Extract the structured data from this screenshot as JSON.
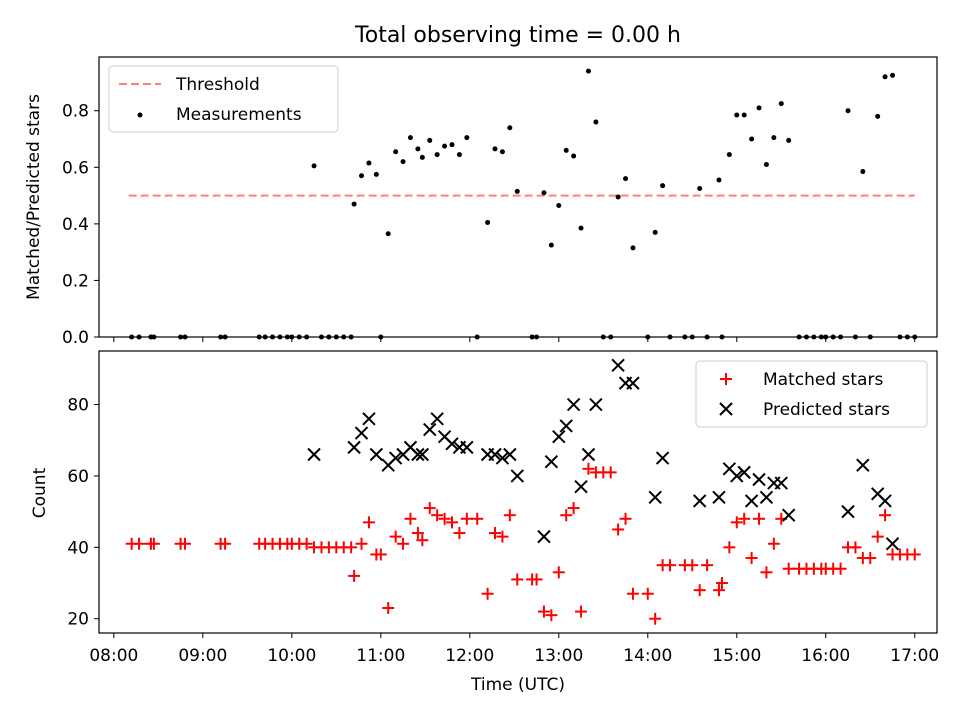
{
  "chart_data": [
    {
      "type": "scatter",
      "title": "Total observing time = 0.00 h",
      "xlabel": "",
      "ylabel": "Matched/Predicted stars",
      "xlim": [
        "07:50",
        "17:15"
      ],
      "ylim": [
        0,
        0.99
      ],
      "yticks": [
        "0.0",
        "0.2",
        "0.4",
        "0.6",
        "0.8"
      ],
      "legend_position": "upper left",
      "legend": [
        "Threshold",
        "Measurements"
      ],
      "threshold": {
        "name": "Threshold",
        "value": 0.5,
        "x": [
          "08:10",
          "17:00"
        ],
        "color": "#ff7f7f"
      },
      "series": [
        {
          "name": "Measurements",
          "color": "#000000",
          "marker": "dot",
          "points": [
            [
              "08:12",
              0
            ],
            [
              "08:17",
              0
            ],
            [
              "08:25",
              0
            ],
            [
              "08:27",
              0
            ],
            [
              "08:45",
              0
            ],
            [
              "08:48",
              0
            ],
            [
              "09:12",
              0
            ],
            [
              "09:15",
              0
            ],
            [
              "09:38",
              0
            ],
            [
              "09:42",
              0
            ],
            [
              "09:47",
              0
            ],
            [
              "09:52",
              0
            ],
            [
              "09:57",
              0
            ],
            [
              "10:00",
              0
            ],
            [
              "10:05",
              0
            ],
            [
              "10:10",
              0
            ],
            [
              "10:15",
              0.605
            ],
            [
              "10:20",
              0
            ],
            [
              "10:25",
              0
            ],
            [
              "10:30",
              0
            ],
            [
              "10:35",
              0
            ],
            [
              "10:40",
              0
            ],
            [
              "10:42",
              0.47
            ],
            [
              "10:47",
              0.57
            ],
            [
              "10:52",
              0.615
            ],
            [
              "10:57",
              0.575
            ],
            [
              "11:00",
              0
            ],
            [
              "11:05",
              0.365
            ],
            [
              "11:10",
              0.655
            ],
            [
              "11:15",
              0.62
            ],
            [
              "11:20",
              0.705
            ],
            [
              "11:25",
              0.665
            ],
            [
              "11:28",
              0.635
            ],
            [
              "11:33",
              0.695
            ],
            [
              "11:38",
              0.645
            ],
            [
              "11:43",
              0.675
            ],
            [
              "11:48",
              0.68
            ],
            [
              "11:53",
              0.645
            ],
            [
              "11:58",
              0.705
            ],
            [
              "12:05",
              0
            ],
            [
              "12:12",
              0.405
            ],
            [
              "12:17",
              0.665
            ],
            [
              "12:22",
              0.655
            ],
            [
              "12:27",
              0.74
            ],
            [
              "12:32",
              0.515
            ],
            [
              "12:42",
              0
            ],
            [
              "12:45",
              0
            ],
            [
              "12:50",
              0.51
            ],
            [
              "12:55",
              0.325
            ],
            [
              "13:00",
              0.465
            ],
            [
              "13:05",
              0.66
            ],
            [
              "13:10",
              0.64
            ],
            [
              "13:15",
              0.385
            ],
            [
              "13:20",
              0.94
            ],
            [
              "13:25",
              0.76
            ],
            [
              "13:30",
              0
            ],
            [
              "13:35",
              0
            ],
            [
              "13:40",
              0.495
            ],
            [
              "13:45",
              0.56
            ],
            [
              "13:50",
              0.315
            ],
            [
              "14:00",
              0
            ],
            [
              "14:05",
              0.37
            ],
            [
              "14:10",
              0.535
            ],
            [
              "14:15",
              0
            ],
            [
              "14:25",
              0
            ],
            [
              "14:30",
              0
            ],
            [
              "14:35",
              0.525
            ],
            [
              "14:40",
              0
            ],
            [
              "14:48",
              0.555
            ],
            [
              "14:50",
              0
            ],
            [
              "14:55",
              0.645
            ],
            [
              "15:00",
              0.785
            ],
            [
              "15:05",
              0.785
            ],
            [
              "15:10",
              0.7
            ],
            [
              "15:15",
              0.81
            ],
            [
              "15:20",
              0.61
            ],
            [
              "15:25",
              0.705
            ],
            [
              "15:30",
              0.825
            ],
            [
              "15:35",
              0.695
            ],
            [
              "15:42",
              0
            ],
            [
              "15:47",
              0
            ],
            [
              "15:52",
              0
            ],
            [
              "15:57",
              0
            ],
            [
              "16:00",
              0
            ],
            [
              "16:05",
              0
            ],
            [
              "16:10",
              0
            ],
            [
              "16:15",
              0.8
            ],
            [
              "16:20",
              0
            ],
            [
              "16:25",
              0.585
            ],
            [
              "16:30",
              0
            ],
            [
              "16:35",
              0.78
            ],
            [
              "16:40",
              0.92
            ],
            [
              "16:45",
              0.925
            ],
            [
              "16:50",
              0
            ],
            [
              "16:55",
              0
            ],
            [
              "17:00",
              0
            ]
          ]
        }
      ]
    },
    {
      "type": "scatter",
      "title": "",
      "xlabel": "Time (UTC)",
      "ylabel": "Count",
      "xlim": [
        "07:50",
        "17:15"
      ],
      "ylim": [
        16,
        95
      ],
      "xticks": [
        "08:00",
        "09:00",
        "10:00",
        "11:00",
        "12:00",
        "13:00",
        "14:00",
        "15:00",
        "16:00",
        "17:00"
      ],
      "yticks": [
        "20",
        "40",
        "60",
        "80"
      ],
      "legend_position": "upper right",
      "legend": [
        "Matched stars",
        "Predicted stars"
      ],
      "series": [
        {
          "name": "Matched stars",
          "color": "#ff0000",
          "marker": "plus",
          "points": [
            [
              "08:12",
              41
            ],
            [
              "08:17",
              41
            ],
            [
              "08:25",
              41
            ],
            [
              "08:27",
              41
            ],
            [
              "08:45",
              41
            ],
            [
              "08:48",
              41
            ],
            [
              "09:12",
              41
            ],
            [
              "09:15",
              41
            ],
            [
              "09:38",
              41
            ],
            [
              "09:42",
              41
            ],
            [
              "09:47",
              41
            ],
            [
              "09:52",
              41
            ],
            [
              "09:57",
              41
            ],
            [
              "10:00",
              41
            ],
            [
              "10:05",
              41
            ],
            [
              "10:10",
              41
            ],
            [
              "10:15",
              40
            ],
            [
              "10:20",
              40
            ],
            [
              "10:25",
              40
            ],
            [
              "10:30",
              40
            ],
            [
              "10:35",
              40
            ],
            [
              "10:40",
              40
            ],
            [
              "10:42",
              32
            ],
            [
              "10:47",
              41
            ],
            [
              "10:52",
              47
            ],
            [
              "10:57",
              38
            ],
            [
              "11:00",
              38
            ],
            [
              "11:05",
              23
            ],
            [
              "11:10",
              43
            ],
            [
              "11:15",
              41
            ],
            [
              "11:20",
              48
            ],
            [
              "11:25",
              44
            ],
            [
              "11:28",
              42
            ],
            [
              "11:33",
              51
            ],
            [
              "11:38",
              49
            ],
            [
              "11:43",
              48
            ],
            [
              "11:48",
              47
            ],
            [
              "11:53",
              44
            ],
            [
              "11:58",
              48
            ],
            [
              "12:05",
              48
            ],
            [
              "12:12",
              27
            ],
            [
              "12:17",
              44
            ],
            [
              "12:22",
              43
            ],
            [
              "12:27",
              49
            ],
            [
              "12:32",
              31
            ],
            [
              "12:42",
              31
            ],
            [
              "12:45",
              31
            ],
            [
              "12:50",
              22
            ],
            [
              "12:55",
              21
            ],
            [
              "13:00",
              33
            ],
            [
              "13:05",
              49
            ],
            [
              "13:10",
              51
            ],
            [
              "13:15",
              22
            ],
            [
              "13:20",
              62
            ],
            [
              "13:25",
              61
            ],
            [
              "13:30",
              61
            ],
            [
              "13:35",
              61
            ],
            [
              "13:40",
              45
            ],
            [
              "13:45",
              48
            ],
            [
              "13:50",
              27
            ],
            [
              "14:00",
              27
            ],
            [
              "14:05",
              20
            ],
            [
              "14:10",
              35
            ],
            [
              "14:15",
              35
            ],
            [
              "14:25",
              35
            ],
            [
              "14:30",
              35
            ],
            [
              "14:35",
              28
            ],
            [
              "14:40",
              35
            ],
            [
              "14:48",
              28
            ],
            [
              "14:50",
              30
            ],
            [
              "14:55",
              40
            ],
            [
              "15:00",
              47
            ],
            [
              "15:05",
              48
            ],
            [
              "15:10",
              37
            ],
            [
              "15:15",
              48
            ],
            [
              "15:20",
              33
            ],
            [
              "15:25",
              41
            ],
            [
              "15:30",
              48
            ],
            [
              "15:35",
              34
            ],
            [
              "15:42",
              34
            ],
            [
              "15:47",
              34
            ],
            [
              "15:52",
              34
            ],
            [
              "15:57",
              34
            ],
            [
              "16:00",
              34
            ],
            [
              "16:05",
              34
            ],
            [
              "16:10",
              34
            ],
            [
              "16:15",
              40
            ],
            [
              "16:20",
              40
            ],
            [
              "16:25",
              37
            ],
            [
              "16:30",
              37
            ],
            [
              "16:35",
              43
            ],
            [
              "16:40",
              49
            ],
            [
              "16:45",
              38
            ],
            [
              "16:50",
              38
            ],
            [
              "16:55",
              38
            ],
            [
              "17:00",
              38
            ]
          ]
        },
        {
          "name": "Predicted stars",
          "color": "#000000",
          "marker": "x",
          "points": [
            [
              "10:15",
              66
            ],
            [
              "10:42",
              68
            ],
            [
              "10:47",
              72
            ],
            [
              "10:52",
              76
            ],
            [
              "10:57",
              66
            ],
            [
              "11:05",
              63
            ],
            [
              "11:10",
              65
            ],
            [
              "11:15",
              66
            ],
            [
              "11:20",
              68
            ],
            [
              "11:25",
              66
            ],
            [
              "11:28",
              66
            ],
            [
              "11:33",
              73
            ],
            [
              "11:38",
              76
            ],
            [
              "11:43",
              71
            ],
            [
              "11:48",
              69
            ],
            [
              "11:53",
              68
            ],
            [
              "11:58",
              68
            ],
            [
              "12:12",
              66
            ],
            [
              "12:17",
              66
            ],
            [
              "12:22",
              65
            ],
            [
              "12:27",
              66
            ],
            [
              "12:32",
              60
            ],
            [
              "12:50",
              43
            ],
            [
              "12:55",
              64
            ],
            [
              "13:00",
              71
            ],
            [
              "13:05",
              74
            ],
            [
              "13:10",
              80
            ],
            [
              "13:15",
              57
            ],
            [
              "13:20",
              66
            ],
            [
              "13:25",
              80
            ],
            [
              "13:40",
              91
            ],
            [
              "13:45",
              86
            ],
            [
              "13:50",
              86
            ],
            [
              "14:05",
              54
            ],
            [
              "14:10",
              65
            ],
            [
              "14:35",
              53
            ],
            [
              "14:48",
              54
            ],
            [
              "14:55",
              62
            ],
            [
              "15:00",
              60
            ],
            [
              "15:05",
              61
            ],
            [
              "15:10",
              53
            ],
            [
              "15:15",
              59
            ],
            [
              "15:20",
              54
            ],
            [
              "15:25",
              58
            ],
            [
              "15:30",
              58
            ],
            [
              "15:35",
              49
            ],
            [
              "16:15",
              50
            ],
            [
              "16:25",
              63
            ],
            [
              "16:35",
              55
            ],
            [
              "16:40",
              53
            ],
            [
              "16:45",
              41
            ]
          ]
        }
      ]
    }
  ]
}
